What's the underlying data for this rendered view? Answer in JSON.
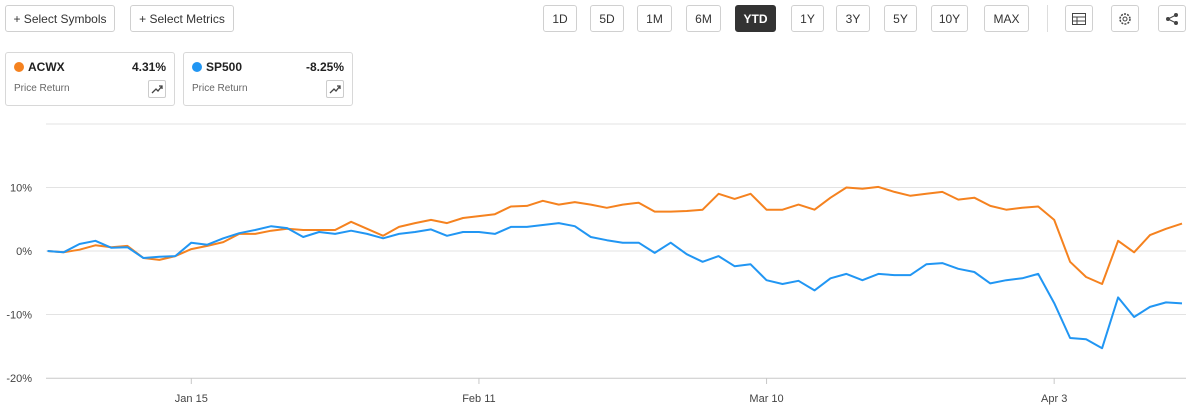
{
  "toolbar": {
    "add_buttons": [
      "+ Select Symbols",
      "+ Select Metrics"
    ],
    "ranges": [
      "1D",
      "5D",
      "1M",
      "6M",
      "YTD",
      "1Y",
      "3Y",
      "5Y",
      "10Y",
      "MAX"
    ],
    "active_range": "YTD"
  },
  "chart_data": {
    "type": "line",
    "categories": [
      null,
      null,
      null,
      null,
      null,
      null,
      null,
      null,
      null,
      "Jan 15",
      null,
      null,
      null,
      null,
      null,
      null,
      null,
      null,
      null,
      null,
      null,
      null,
      null,
      null,
      null,
      null,
      null,
      "Feb 11",
      null,
      null,
      null,
      null,
      null,
      null,
      null,
      null,
      null,
      null,
      null,
      null,
      null,
      null,
      null,
      null,
      null,
      "Mar 10",
      null,
      null,
      null,
      null,
      null,
      null,
      null,
      null,
      null,
      null,
      null,
      null,
      null,
      null,
      null,
      null,
      null,
      "Apr 3",
      null,
      null,
      null,
      null,
      null,
      null,
      null,
      null
    ],
    "series": [
      {
        "name": "ACWX",
        "color": "#f5821f",
        "change_label": "4.31%",
        "metric": "Price Return",
        "values": [
          0,
          -0.2,
          0.2,
          0.9,
          0.6,
          0.8,
          -1.1,
          -1.4,
          -0.8,
          0.3,
          0.8,
          1.4,
          2.7,
          2.7,
          3.2,
          3.5,
          3.3,
          3.3,
          3.3,
          4.6,
          3.5,
          2.4,
          3.8,
          4.4,
          4.9,
          4.4,
          5.2,
          5.5,
          5.8,
          7.0,
          7.1,
          7.9,
          7.3,
          7.7,
          7.3,
          6.8,
          7.3,
          7.6,
          6.2,
          6.2,
          6.3,
          6.5,
          9.0,
          8.2,
          9.0,
          6.5,
          6.5,
          7.3,
          6.5,
          8.4,
          10.0,
          9.8,
          10.1,
          9.3,
          8.7,
          9.0,
          9.3,
          8.1,
          8.4,
          7.1,
          6.5,
          6.8,
          7.0,
          4.9,
          -1.7,
          -4.1,
          -5.2,
          1.6,
          -0.2,
          2.5,
          3.5,
          4.31
        ]
      },
      {
        "name": "SP500",
        "color": "#2196f3",
        "change_label": "-8.25%",
        "metric": "Price Return",
        "values": [
          0,
          -0.2,
          1.1,
          1.6,
          0.5,
          0.6,
          -1.1,
          -0.9,
          -0.8,
          1.3,
          1.0,
          2.0,
          2.8,
          3.3,
          3.9,
          3.6,
          2.2,
          3.0,
          2.7,
          3.2,
          2.7,
          2.0,
          2.7,
          3.0,
          3.4,
          2.4,
          3.0,
          3.0,
          2.7,
          3.8,
          3.8,
          4.1,
          4.4,
          3.9,
          2.2,
          1.7,
          1.3,
          1.3,
          -0.3,
          1.3,
          -0.5,
          -1.7,
          -0.8,
          -2.4,
          -2.1,
          -4.6,
          -5.2,
          -4.7,
          -6.2,
          -4.3,
          -3.6,
          -4.6,
          -3.6,
          -3.8,
          -3.8,
          -2.1,
          -1.9,
          -2.8,
          -3.3,
          -5.1,
          -4.6,
          -4.3,
          -3.6,
          -8.2,
          -13.7,
          -13.9,
          -15.3,
          -7.3,
          -10.4,
          -8.8,
          -8.1,
          -8.25
        ]
      }
    ],
    "ylim": [
      -20,
      20
    ],
    "yticks": [
      {
        "value": -20,
        "label": "-20%"
      },
      {
        "value": -10,
        "label": "-10%"
      },
      {
        "value": 0,
        "label": "0%"
      },
      {
        "value": 10,
        "label": "10%"
      }
    ],
    "grid": true
  }
}
